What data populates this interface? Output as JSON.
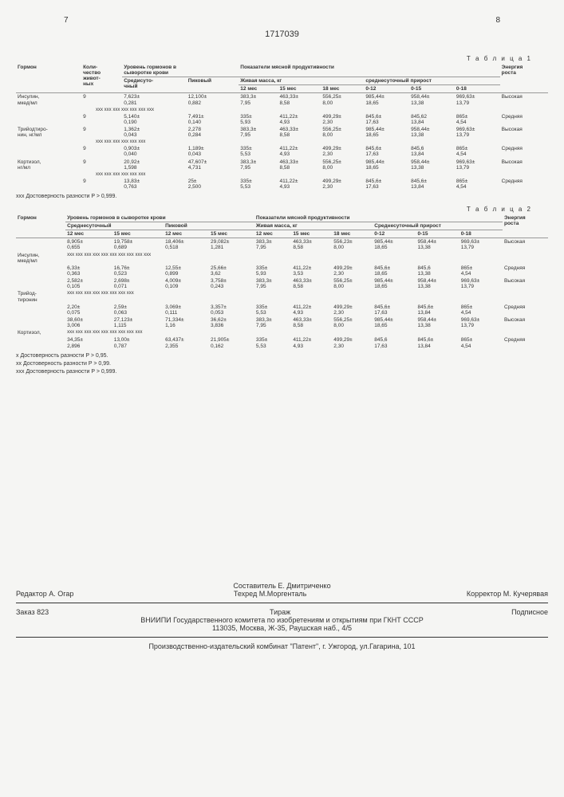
{
  "pageLeft": "7",
  "docNumber": "1717039",
  "pageRight": "8",
  "table1": {
    "label": "Т а б л и ц а  1",
    "headers": {
      "c1": "Гормон",
      "c2": "Коли-\nчество\nживот-\nных",
      "c3": "Уровень гормонов в\nсыворотке крови",
      "c3a": "Средисуто-\nчный",
      "c3b": "Пиковый",
      "c4": "Показатели мясной продуктивности",
      "c4a": "Живая масса, кг",
      "c4a1": "12 мес",
      "c4a2": "15 мес",
      "c4a3": "18 мес",
      "c4b": "среднесуточный прирост",
      "c4b1": "0-12",
      "c4b2": "0-15",
      "c4b3": "0-18",
      "c5": "Энергия\nроста"
    },
    "rows": [
      {
        "h": "Инсулин,\nмкед/мл",
        "n": "9",
        "a": "7,623±\n0,281",
        "b": "12,100±\n0,882",
        "m12": "383,3±\n7,95",
        "m15": "463,33±\n8,58",
        "m18": "556,25±\n8,00",
        "p1": "985,44±\n18,65",
        "p2": "958,44±\n13,38",
        "p3": "969,63±\n13,79",
        "e": "Высокая"
      },
      {
        "x": "ххх ххх ххх ххх ххх ххх ххх"
      },
      {
        "h": "",
        "n": "9",
        "a": "5,140±\n0,190",
        "b": "7,491±\n0,140",
        "m12": "335±\n5,93",
        "m15": "411,22±\n4,93",
        "m18": "499,29±\n2,30",
        "p1": "845,6±\n17,63",
        "p2": "845,62\n13,84",
        "p3": "865±\n4,54",
        "e": "Средняя"
      },
      {
        "h": "Трийодтиро-\nнин, нг/мл",
        "n": "9",
        "a": "1,362±\n0,043",
        "b": "2,278\n0,284",
        "m12": "383,3±\n7,95",
        "m15": "463,33±\n8,58",
        "m18": "556,25±\n8,00",
        "p1": "985,44±\n18,65",
        "p2": "958,44±\n13,38",
        "p3": "969,63±\n13,79",
        "e": "Высокая"
      },
      {
        "x": "ххх ххх ххх ххх ххх ххх"
      },
      {
        "h": "",
        "n": "9",
        "a": "0,903±\n0,040",
        "b": "1,189±\n0,043",
        "m12": "335±\n5,53",
        "m15": "411,22±\n4,93",
        "m18": "499,29±\n2,30",
        "p1": "845,6±\n17,63",
        "p2": "845,6\n13,84",
        "p3": "865±\n4,54",
        "e": "Средняя"
      },
      {
        "h": "Кортизол,\nнг/мл",
        "n": "9",
        "a": "20,92±\n1,598",
        "b": "47,607±\n4,731",
        "m12": "383,3±\n7,95",
        "m15": "463,33±\n8,58",
        "m18": "556,25±\n8,00",
        "p1": "985,44±\n18,65",
        "p2": "958,44±\n13,38",
        "p3": "969,63±\n13,79",
        "e": "Высокая"
      },
      {
        "x": "ххх ххх ххх ххх ххх ххх"
      },
      {
        "h": "",
        "n": "9",
        "a": "13,83±\n0,763",
        "b": "25±\n2,500",
        "m12": "335±\n5,53",
        "m15": "411,22±\n4,93",
        "m18": "499,29±\n2,30",
        "p1": "845,6±\n17,63",
        "p2": "845,6±\n13,84",
        "p3": "865±\n4,54",
        "e": "Средняя"
      }
    ],
    "note": "ххх Достоверность разности P > 0,999."
  },
  "table2": {
    "label": "Т а б л и ц а  2",
    "headers": {
      "c1": "Гормон",
      "c2": "Уровень гормонов в сыворотке крови",
      "c2a": "Среднесуточный",
      "c2b": "Пиковой",
      "c2a1": "12 мес",
      "c2a2": "15 мес",
      "c2b1": "12 мес",
      "c2b2": "15 мес",
      "c3": "Показатели мясной продуктивности",
      "c3a": "Живая масса, кг",
      "c3a1": "12 мес",
      "c3a2": "15 мес",
      "c3a3": "18 мес",
      "c3b": "Среднесуточный прирост",
      "c3b1": "0-12",
      "c3b2": "0-15",
      "c3b3": "0-18",
      "c4": "Энергия\nроста"
    },
    "rows": [
      {
        "h": "",
        "a1": "8,905±\n0,655",
        "a2": "19,758±\n0,689",
        "b1": "18,406±\n0,518",
        "b2": "29,082±\n1,281",
        "m12": "383,3±\n7,95",
        "m15": "463,33±\n8,58",
        "m18": "556,23±\n8,00",
        "p1": "985,44±\n18,65",
        "p2": "958,44±\n13,38",
        "p3": "969,63±\n13,79",
        "e": "Высокая"
      },
      {
        "h": "Инсулин,\nмкед/мл",
        "x": "ххх ххх ххх ххх ххх ххх ххх ххх ххх ххх"
      },
      {
        "h": "",
        "a1": "6,33±\n0,363",
        "a2": "16,76±\n0,523",
        "b1": "12,55±\n0,899",
        "b2": "25,66±\n3,62",
        "m12": "335±\n5,93",
        "m15": "411,22±\n3,53",
        "m18": "499,29±\n2,30",
        "p1": "845,6±\n18,65",
        "p2": "845,6\n13,38",
        "p3": "865±\n4,54",
        "e": "Средняя"
      },
      {
        "h": "",
        "a1": "2,582±\n0,105",
        "a2": "2,698±\n0,071",
        "b1": "4,009±\n0,109",
        "b2": "3,758±\n0,243",
        "m12": "383,3±\n7,95",
        "m15": "463,33±\n8,58",
        "m18": "556,25±\n8,00",
        "p1": "985,44±\n18,65",
        "p2": "958,44±\n13,38",
        "p3": "969,63±\n13,79",
        "e": "Высокая"
      },
      {
        "h": "Трийод-\nтиронин",
        "x": "ххх ххх ххх ххх ххх ххх ххх ххх"
      },
      {
        "h": "",
        "a1": "2,20±\n0,075",
        "a2": "2,59±\n0,063",
        "b1": "3,069±\n0,111",
        "b2": "3,357±\n0,053",
        "m12": "335±\n5,53",
        "m15": "411,22±\n4,93",
        "m18": "499,29±\n2,30",
        "p1": "845,6±\n17,63",
        "p2": "845,6±\n13,84",
        "p3": "865±\n4,54",
        "e": "Средняя"
      },
      {
        "h": "",
        "a1": "38,60±\n3,006",
        "a2": "27,123±\n1,115",
        "b1": "71,334±\n1,16",
        "b2": "36,62±\n3,836",
        "m12": "383,3±\n7,95",
        "m15": "463,33±\n8,58",
        "m18": "556,25±\n8,00",
        "p1": "985,44±\n18,65",
        "p2": "958,44±\n13,38",
        "p3": "969,63±\n13,79",
        "e": "Высокая"
      },
      {
        "h": "Кортизол,",
        "x": "ххх ххх ххх ххх ххх ххх ххх ххх ххх"
      },
      {
        "h": "",
        "a1": "34,35±\n2,896",
        "a2": "13,00±\n0,787",
        "b1": "63,437±\n2,355",
        "b2": "21,905±\n0,162",
        "m12": "335±\n5,53",
        "m15": "411,22±\n4,93",
        "m18": "499,29±\n2,30",
        "p1": "845,6\n17,63",
        "p2": "845,6±\n13,84",
        "p3": "865±\n4,54",
        "e": "Средняя"
      }
    ],
    "notes": [
      "х Достоверность разности P > 0,95.",
      "хх Достоверность разности P > 0,99.",
      "ххх Достоверность разности P > 0,999."
    ]
  },
  "footer": {
    "compiler": "Составитель Е. Дмитриченко",
    "editor": "Редактор А. Огар",
    "techred": "Техред М.Моргенталь",
    "corrector": "Корректор М. Кучерявая",
    "order": "Заказ 823",
    "tirazh": "Тираж",
    "podpis": "Подписное",
    "org1": "ВНИИПИ Государственного комитета по изобретениям и открытиям при ГКНТ СССР",
    "org2": "113035, Москва, Ж-35, Раушская наб., 4/5",
    "prod": "Производственно-издательский комбинат \"Патент\", г. Ужгород, ул.Гагарина, 101"
  }
}
